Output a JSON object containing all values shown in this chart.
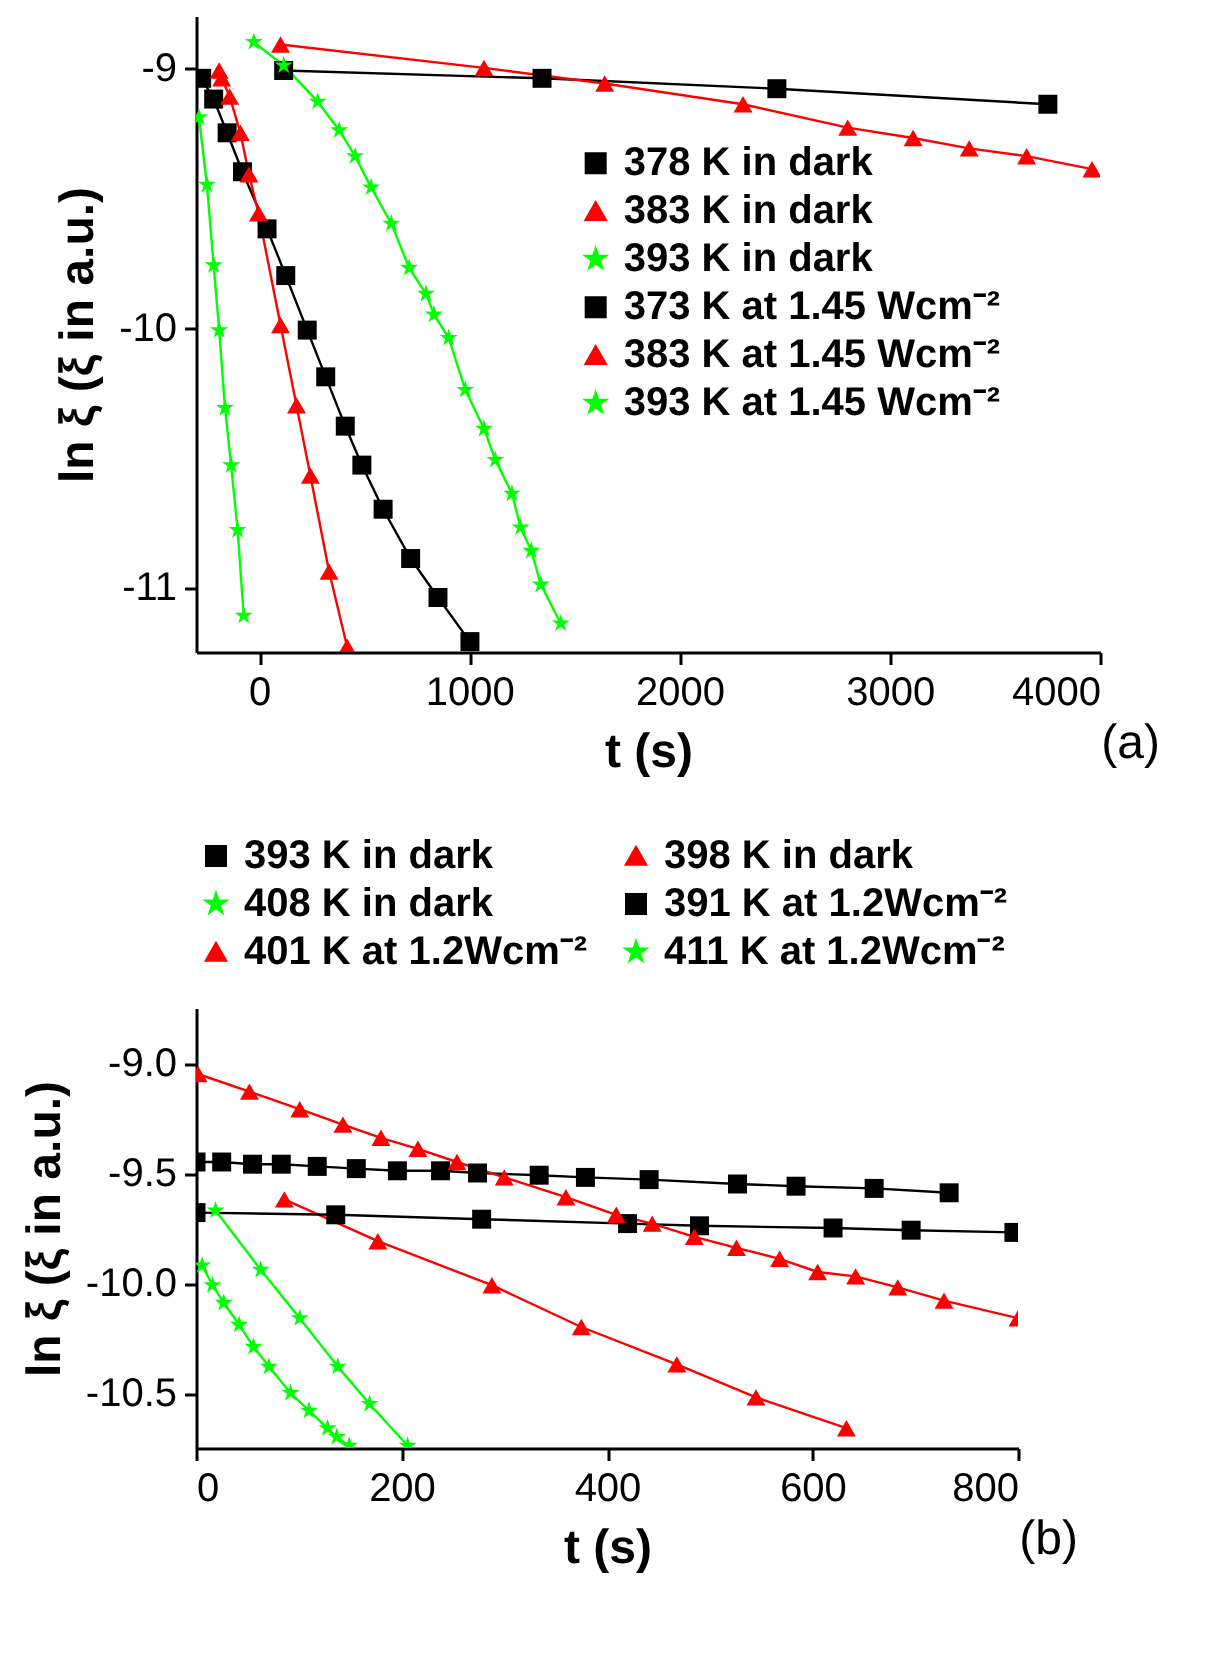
{
  "chart_data": [
    {
      "type": "line",
      "xlabel": "t (s)",
      "ylabel": "ln ξ (ξ in a.u.)",
      "annotations": [
        "(a)"
      ],
      "xlim": [
        -300,
        4000
      ],
      "ylim": [
        -11.25,
        -8.8
      ],
      "xticks": [
        0,
        1000,
        2000,
        3000,
        4000
      ],
      "yticks": [
        -11,
        -10,
        -9
      ],
      "legend": "right",
      "grid": false,
      "series": [
        {
          "name": "378 K in dark",
          "color": "#000000",
          "marker": "square",
          "x": [
            117,
            1346,
            2463,
            3752
          ],
          "values": [
            -9.01,
            -9.04,
            -9.08,
            -9.14
          ]
        },
        {
          "name": "383 K in dark",
          "color": "#ff0000",
          "marker": "triangle",
          "x": [
            102,
            1070,
            1644,
            2302,
            2800,
            3111,
            3378,
            3651,
            3962
          ],
          "values": [
            -8.91,
            -9.0,
            -9.06,
            -9.14,
            -9.23,
            -9.27,
            -9.31,
            -9.34,
            -9.39
          ]
        },
        {
          "name": "393 K in dark",
          "color": "#00ff00",
          "marker": "star",
          "x": [
            -25,
            117,
            279,
            381,
            457,
            533,
            629,
            714,
            794,
            832,
            902,
            981,
            1070,
            1124,
            1203,
            1244,
            1295,
            1340,
            1435
          ],
          "values": [
            -8.9,
            -8.99,
            -9.13,
            -9.24,
            -9.34,
            -9.46,
            -9.6,
            -9.77,
            -9.87,
            -9.95,
            -10.04,
            -10.24,
            -10.39,
            -10.51,
            -10.64,
            -10.77,
            -10.86,
            -10.99,
            -11.14
          ]
        },
        {
          "name": "373 K at 1.45 Wcm⁻²",
          "color": "#000000",
          "marker": "square",
          "x": [
            -273,
            -216,
            -152,
            -79,
            38,
            127,
            229,
            317,
            410,
            489,
            590,
            721,
            851,
            1003
          ],
          "values": [
            -9.04,
            -9.12,
            -9.25,
            -9.4,
            -9.62,
            -9.8,
            -10.01,
            -10.19,
            -10.38,
            -10.53,
            -10.7,
            -10.89,
            -11.04,
            -11.21
          ]
        },
        {
          "name": "383 K at 1.45 Wcm⁻²",
          "color": "#ff0000",
          "marker": "triangle",
          "x": [
            -190,
            -178,
            -140,
            -89,
            -48,
            -3,
            102,
            178,
            244,
            333,
            419
          ],
          "values": [
            -9.01,
            -9.04,
            -9.11,
            -9.25,
            -9.41,
            -9.56,
            -9.99,
            -10.3,
            -10.57,
            -10.94,
            -11.23
          ]
        },
        {
          "name": "393 K at 1.45 Wcm⁻²",
          "color": "#00ff00",
          "marker": "star",
          "x": [
            -286,
            -248,
            -216,
            -190,
            -162,
            -133,
            -102,
            -73
          ],
          "values": [
            -9.19,
            -9.45,
            -9.76,
            -10.01,
            -10.31,
            -10.53,
            -10.78,
            -11.11
          ]
        }
      ]
    },
    {
      "type": "line",
      "xlabel": "t (s)",
      "ylabel": "ln ξ (ξ in a.u.)",
      "annotations": [
        "(b)"
      ],
      "xlim": [
        0,
        800
      ],
      "ylim": [
        -10.75,
        -8.75
      ],
      "xticks": [
        0,
        200,
        400,
        600,
        800
      ],
      "yticks": [
        -10.5,
        {
          "value": -10,
          "label": "-10.0"
        },
        -9.5,
        {
          "value": -9,
          "label": "-9.0"
        }
      ],
      "legend": "top",
      "grid": false,
      "series": [
        {
          "name": "393 K in dark",
          "color": "#000000",
          "marker": "square",
          "x": [
            0,
            25,
            55,
            83,
            118,
            156,
            196,
            238,
            274,
            334,
            379,
            441,
            527,
            584,
            660,
            733
          ],
          "values": [
            -9.45,
            -9.45,
            -9.46,
            -9.46,
            -9.47,
            -9.48,
            -9.49,
            -9.49,
            -9.5,
            -9.51,
            -9.52,
            -9.53,
            -9.55,
            -9.56,
            -9.57,
            -9.59
          ]
        },
        {
          "name": "398 K in dark",
          "color": "#ff0000",
          "marker": "triangle",
          "x": [
            86,
            177,
            288,
            375,
            468,
            545,
            633
          ],
          "values": [
            -9.62,
            -9.81,
            -10.01,
            -10.2,
            -10.37,
            -10.52,
            -10.66
          ]
        },
        {
          "name": "408 K in dark",
          "color": "#00ff00",
          "marker": "star",
          "x": [
            19,
            63,
            101,
            138,
            169,
            206
          ],
          "values": [
            -9.67,
            -9.94,
            -10.16,
            -10.38,
            -10.55,
            -10.74
          ]
        },
        {
          "name": "391 K at 1.2Wcm⁻²",
          "color": "#000000",
          "marker": "square",
          "x": [
            0,
            136,
            278,
            420,
            490,
            620,
            696,
            796
          ],
          "values": [
            -9.68,
            -9.69,
            -9.71,
            -9.73,
            -9.74,
            -9.75,
            -9.76,
            -9.77
          ]
        },
        {
          "name": "401 K at 1.2Wcm⁻²",
          "color": "#ff0000",
          "marker": "triangle",
          "x": [
            2,
            52,
            101,
            143,
            180,
            216,
            254,
            300,
            360,
            409,
            444,
            485,
            526,
            568,
            605,
            642,
            683,
            728,
            800
          ],
          "values": [
            -9.05,
            -9.13,
            -9.21,
            -9.28,
            -9.34,
            -9.39,
            -9.45,
            -9.52,
            -9.61,
            -9.69,
            -9.73,
            -9.79,
            -9.84,
            -9.89,
            -9.95,
            -9.97,
            -10.02,
            -10.08,
            -10.16
          ]
        },
        {
          "name": "411 K at 1.2Wcm⁻²",
          "color": "#00ff00",
          "marker": "star",
          "x": [
            6,
            16,
            27,
            42,
            56,
            71,
            92,
            110,
            128,
            137,
            149
          ],
          "values": [
            -9.92,
            -10.01,
            -10.09,
            -10.19,
            -10.29,
            -10.38,
            -10.5,
            -10.58,
            -10.66,
            -10.7,
            -10.74
          ]
        }
      ]
    }
  ]
}
